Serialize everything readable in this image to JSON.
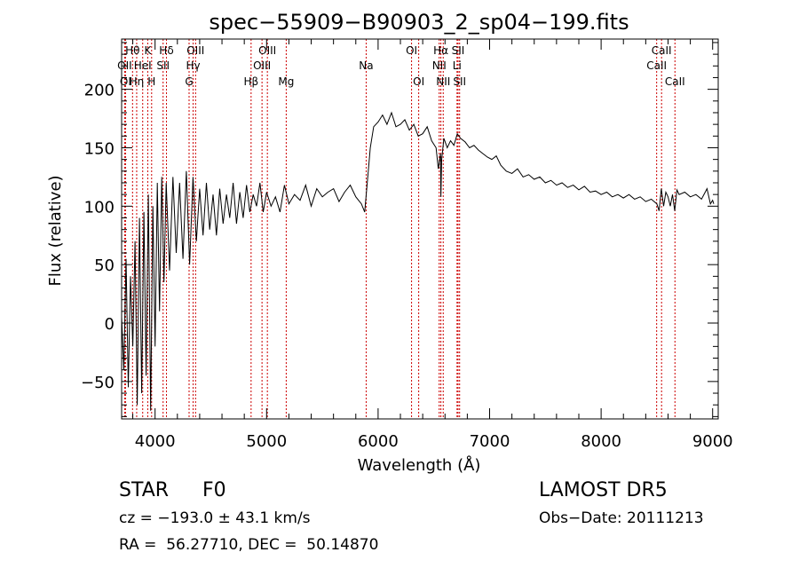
{
  "chart_data": {
    "type": "line",
    "title": "spec−55909−B90903_2_sp04−199.fits",
    "xlabel": "Wavelength (Å)",
    "ylabel": "Flux (relative)",
    "xlim": [
      3700,
      9050
    ],
    "ylim": [
      -82,
      243
    ],
    "xticks": [
      4000,
      5000,
      6000,
      7000,
      8000,
      9000
    ],
    "yticks": [
      -50,
      0,
      50,
      100,
      150,
      200
    ],
    "ytick_labels": [
      "−50",
      "0",
      "50",
      "100",
      "150",
      "200"
    ],
    "grid": false,
    "line_color": "#000000",
    "marker_color": "#cc0000",
    "series": [
      {
        "x": [
          3700,
          3720,
          3740,
          3760,
          3780,
          3800,
          3820,
          3840,
          3860,
          3880,
          3900,
          3920,
          3940,
          3960,
          3980,
          4000,
          4020,
          4040,
          4060,
          4080,
          4100,
          4130,
          4160,
          4190,
          4220,
          4250,
          4280,
          4310,
          4340,
          4370,
          4400,
          4430,
          4460,
          4490,
          4520,
          4550,
          4580,
          4610,
          4640,
          4670,
          4700,
          4730,
          4760,
          4790,
          4820,
          4850,
          4880,
          4910,
          4940,
          4970,
          5000,
          5040,
          5080,
          5120,
          5160,
          5200,
          5250,
          5300,
          5350,
          5400,
          5450,
          5500,
          5550,
          5600,
          5650,
          5700,
          5750,
          5800,
          5850,
          5880,
          5910,
          5930,
          5960,
          6000,
          6040,
          6080,
          6120,
          6160,
          6200,
          6240,
          6280,
          6320,
          6360,
          6400,
          6440,
          6480,
          6520,
          6540,
          6560,
          6563,
          6570,
          6590,
          6620,
          6650,
          6680,
          6710,
          6740,
          6780,
          6820,
          6860,
          6900,
          6940,
          6980,
          7020,
          7060,
          7100,
          7150,
          7200,
          7250,
          7300,
          7350,
          7400,
          7450,
          7500,
          7550,
          7600,
          7650,
          7700,
          7750,
          7800,
          7850,
          7900,
          7950,
          8000,
          8050,
          8100,
          8150,
          8200,
          8250,
          8300,
          8350,
          8400,
          8450,
          8500,
          8520,
          8540,
          8560,
          8580,
          8600,
          8620,
          8640,
          8660,
          8680,
          8700,
          8750,
          8800,
          8850,
          8900,
          8950,
          8980,
          9000,
          9010
        ],
        "y": [
          5,
          -40,
          55,
          -55,
          40,
          -20,
          70,
          -70,
          90,
          -60,
          95,
          -45,
          110,
          -75,
          100,
          -20,
          120,
          10,
          125,
          35,
          120,
          45,
          125,
          60,
          120,
          55,
          130,
          50,
          125,
          70,
          115,
          75,
          120,
          80,
          110,
          75,
          115,
          85,
          110,
          90,
          120,
          85,
          112,
          90,
          118,
          95,
          110,
          100,
          120,
          95,
          112,
          100,
          108,
          95,
          118,
          102,
          110,
          105,
          118,
          100,
          115,
          108,
          112,
          115,
          104,
          112,
          118,
          108,
          102,
          95,
          128,
          150,
          168,
          172,
          178,
          170,
          180,
          168,
          170,
          174,
          165,
          170,
          160,
          162,
          168,
          156,
          150,
          132,
          145,
          108,
          140,
          158,
          150,
          156,
          152,
          162,
          158,
          155,
          150,
          152,
          148,
          145,
          142,
          140,
          143,
          135,
          130,
          128,
          132,
          125,
          127,
          123,
          125,
          120,
          122,
          118,
          120,
          116,
          118,
          114,
          117,
          112,
          113,
          110,
          112,
          108,
          110,
          107,
          110,
          106,
          108,
          104,
          106,
          102,
          96,
          115,
          100,
          112,
          108,
          100,
          110,
          96,
          114,
          110,
          112,
          108,
          110,
          106,
          115,
          102,
          105,
          102
        ]
      }
    ],
    "lines": [
      {
        "label": "OII",
        "x": 3727,
        "row": 1
      },
      {
        "label": "OI",
        "x": 3735,
        "row": 2
      },
      {
        "label": "Hθ",
        "x": 3798,
        "row": 0
      },
      {
        "label": "Hη",
        "x": 3835,
        "row": 2
      },
      {
        "label": "HeI",
        "x": 3889,
        "row": 1
      },
      {
        "label": "K",
        "x": 3934,
        "row": 0
      },
      {
        "label": "H",
        "x": 3969,
        "row": 2
      },
      {
        "label": "Hδ",
        "x": 4102,
        "row": 0
      },
      {
        "label": "SII",
        "x": 4072,
        "row": 1
      },
      {
        "label": "G",
        "x": 4305,
        "row": 2
      },
      {
        "label": "Hγ",
        "x": 4341,
        "row": 1
      },
      {
        "label": "OIII",
        "x": 4363,
        "row": 0
      },
      {
        "label": "Hβ",
        "x": 4861,
        "row": 2
      },
      {
        "label": "OIII",
        "x": 4959,
        "row": 1
      },
      {
        "label": "OIII",
        "x": 5007,
        "row": 0
      },
      {
        "label": "Mg",
        "x": 5176,
        "row": 2
      },
      {
        "label": "Na",
        "x": 5893,
        "row": 1
      },
      {
        "label": "OI",
        "x": 6300,
        "row": 0
      },
      {
        "label": "OI",
        "x": 6364,
        "row": 2
      },
      {
        "label": "NII",
        "x": 6548,
        "row": 1
      },
      {
        "label": "Hα",
        "x": 6563,
        "row": 0
      },
      {
        "label": "NII",
        "x": 6584,
        "row": 2
      },
      {
        "label": "Li",
        "x": 6708,
        "row": 1
      },
      {
        "label": "SII",
        "x": 6717,
        "row": 0
      },
      {
        "label": "SII",
        "x": 6731,
        "row": 2
      },
      {
        "label": "CaII",
        "x": 8498,
        "row": 1
      },
      {
        "label": "CaII",
        "x": 8542,
        "row": 0
      },
      {
        "label": "CaII",
        "x": 8662,
        "row": 2
      }
    ]
  },
  "info": {
    "class": "STAR",
    "subclass": "F0",
    "cz": "cz = −193.0 ± 43.1 km/s",
    "radec": "RA =  56.27710, DEC =  50.14870",
    "survey": "LAMOST DR5",
    "obsdate": "Obs−Date: 20111213"
  }
}
